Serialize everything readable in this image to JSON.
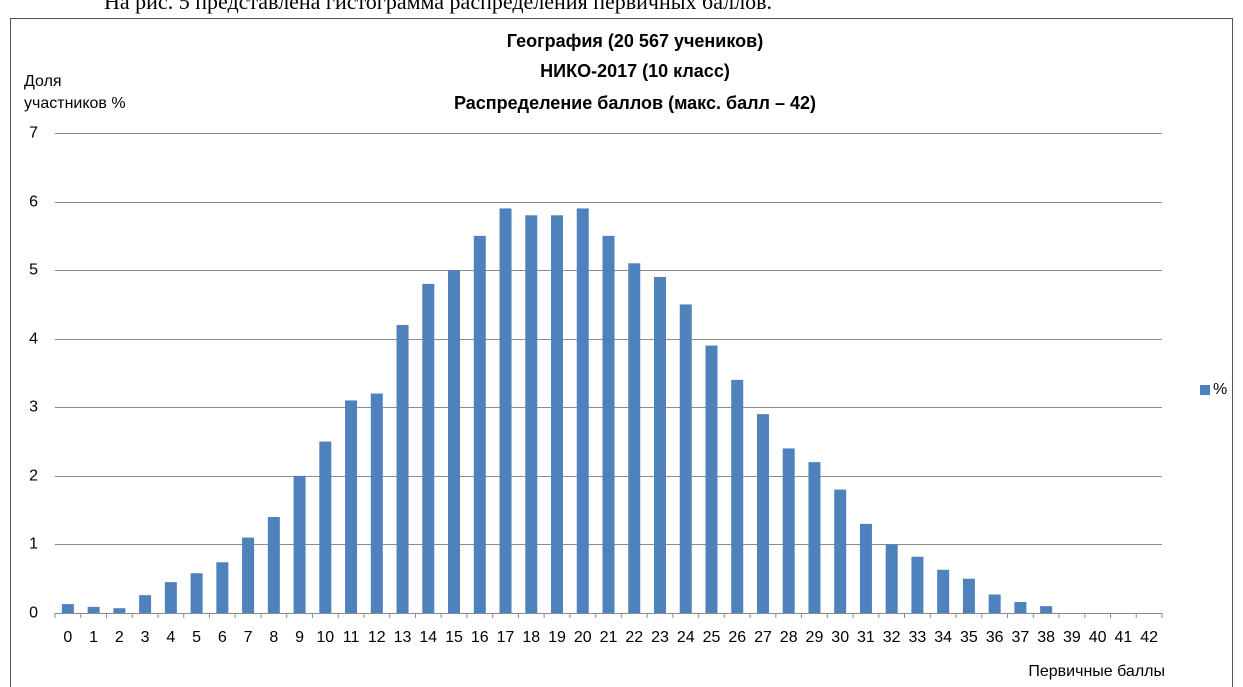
{
  "caption": "На рис. 5 представлена гистограмма распределения первичных баллов.",
  "chart_data": {
    "type": "bar",
    "title": [
      "География (20 567 учеников)",
      "НИКО-2017  (10 класс)",
      "Распределение баллов  (макс. балл – 42)"
    ],
    "ylabel": [
      "Доля",
      "участников %"
    ],
    "xlabel": "Первичные баллы",
    "categories": [
      "0",
      "1",
      "2",
      "3",
      "4",
      "5",
      "6",
      "7",
      "8",
      "9",
      "10",
      "11",
      "12",
      "13",
      "14",
      "15",
      "16",
      "17",
      "18",
      "19",
      "20",
      "21",
      "22",
      "23",
      "24",
      "25",
      "26",
      "27",
      "28",
      "29",
      "30",
      "31",
      "32",
      "33",
      "34",
      "35",
      "36",
      "37",
      "38",
      "39",
      "40",
      "41",
      "42"
    ],
    "series": [
      {
        "name": "%",
        "color": "#4f81bd",
        "values": [
          0.13,
          0.09,
          0.07,
          0.26,
          0.45,
          0.58,
          0.74,
          1.1,
          1.4,
          2.0,
          2.5,
          3.1,
          3.2,
          4.2,
          4.8,
          5.0,
          5.5,
          5.9,
          5.8,
          5.8,
          5.9,
          5.5,
          5.1,
          4.9,
          4.5,
          3.9,
          3.4,
          2.9,
          2.4,
          2.2,
          1.8,
          1.3,
          1.0,
          0.82,
          0.63,
          0.5,
          0.27,
          0.16,
          0.1,
          0,
          0,
          0,
          0
        ]
      }
    ],
    "ylim": [
      0,
      7
    ],
    "yticks": [
      0,
      1,
      2,
      3,
      4,
      5,
      6,
      7
    ],
    "grid": true,
    "legend": "right"
  }
}
